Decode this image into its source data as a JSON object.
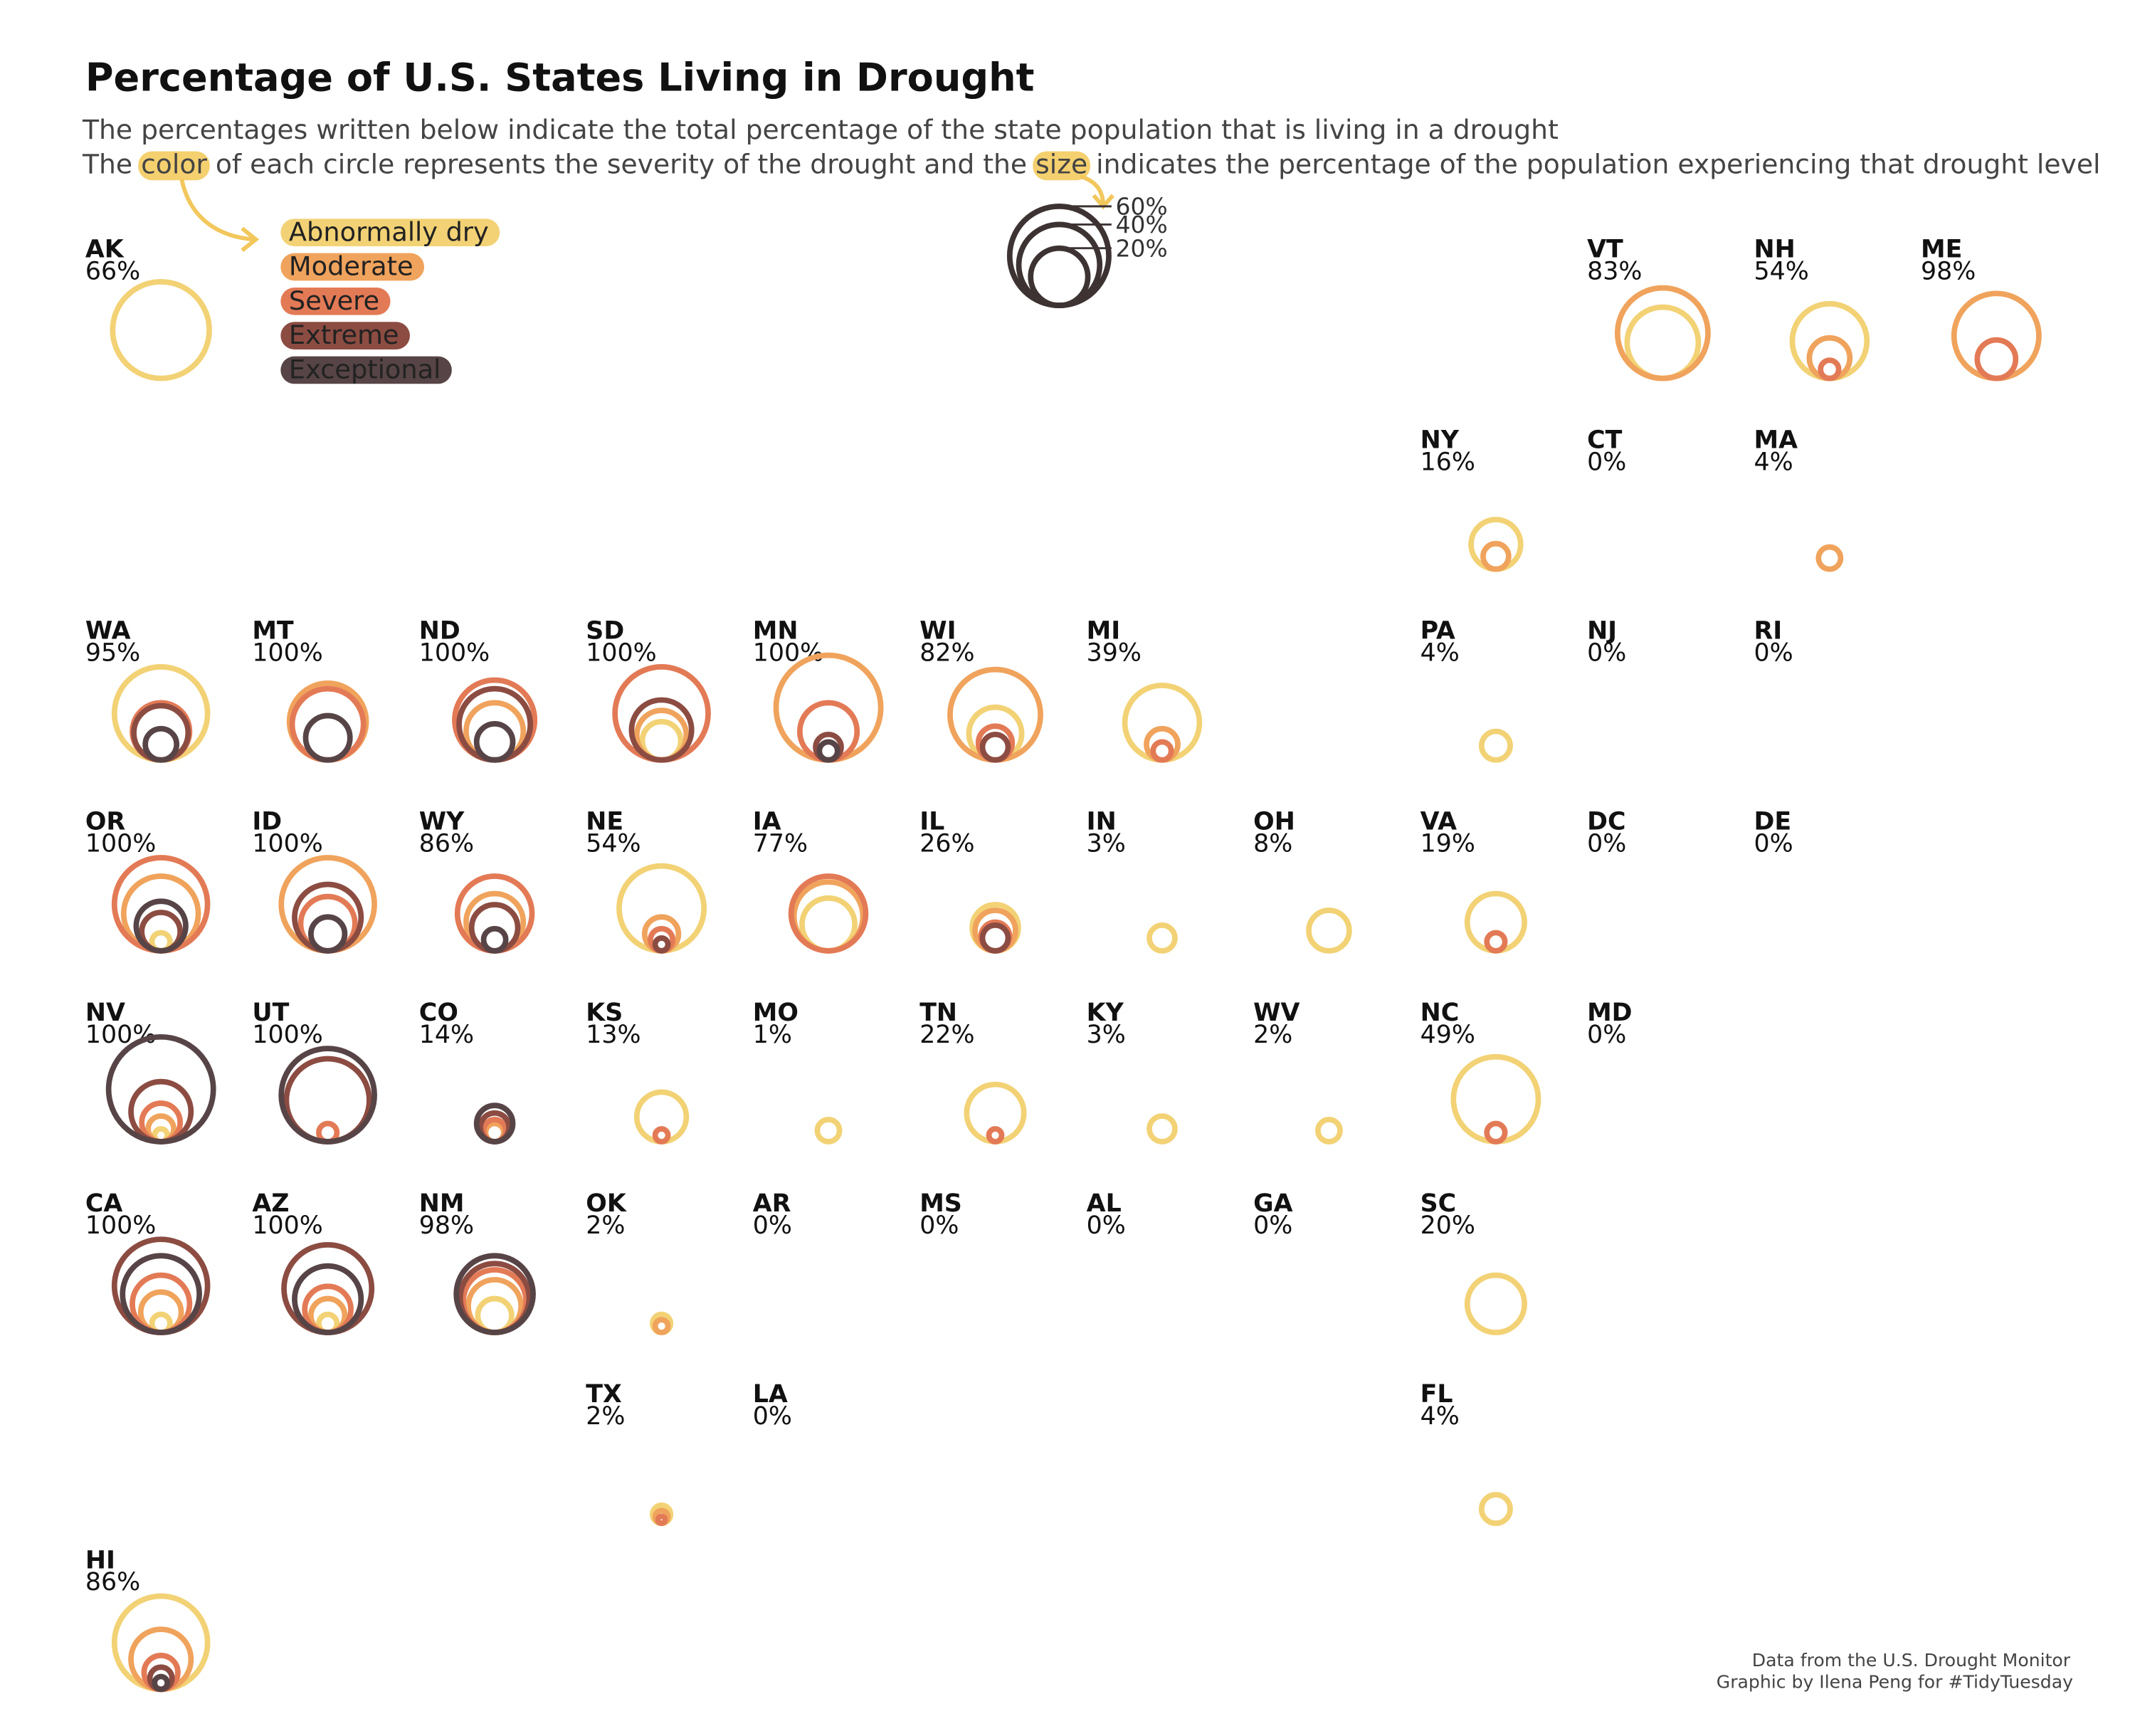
{
  "chart_data": {
    "type": "tilemap",
    "title": "Percentage of U.S. States Living in Drought",
    "subtitle": "The percentages written below indicate the total percentage of the state population that is living in a drought",
    "subtitle_2": [
      "The ",
      "color",
      " of each circle represents the severity of the drought and the ",
      "size",
      " indicates the percentage of the population experiencing that drought level"
    ],
    "highlight": "#f5d06f",
    "levels": [
      {
        "name": "Abnormally dry",
        "color": "#f2d275"
      },
      {
        "name": "Moderate",
        "color": "#f0a35c"
      },
      {
        "name": "Severe",
        "color": "#e37a56"
      },
      {
        "name": "Extreme",
        "color": "#8c4c42"
      },
      {
        "name": "Exceptional",
        "color": "#574446"
      }
    ],
    "size_legend": [
      {
        "value": 60,
        "label": "60%"
      },
      {
        "value": 40,
        "label": "40%"
      },
      {
        "value": 20,
        "label": "20%"
      }
    ],
    "states": [
      {
        "abbr": "AK",
        "total": 66,
        "total_label": "66%",
        "values": [
          57,
          0,
          0,
          0,
          0
        ]
      },
      {
        "abbr": "VT",
        "total": 83,
        "total_label": "83%",
        "values": [
          31,
          50,
          0,
          0,
          0
        ]
      },
      {
        "abbr": "NH",
        "total": 54,
        "total_label": "54%",
        "values": [
          34,
          10,
          2,
          0,
          0
        ]
      },
      {
        "abbr": "ME",
        "total": 98,
        "total_label": "98%",
        "values": [
          0,
          44,
          9,
          0,
          0
        ]
      },
      {
        "abbr": "NY",
        "total": 16,
        "total_label": "16%",
        "values": [
          15,
          4,
          0,
          0,
          0
        ]
      },
      {
        "abbr": "CT",
        "total": 0,
        "total_label": "0%",
        "values": [
          0,
          0,
          0,
          0,
          0
        ]
      },
      {
        "abbr": "MA",
        "total": 4,
        "total_label": "4%",
        "values": [
          0,
          3,
          0,
          0,
          0
        ]
      },
      {
        "abbr": "WA",
        "total": 95,
        "total_label": "95%",
        "values": [
          53,
          0,
          20,
          18,
          6
        ]
      },
      {
        "abbr": "MT",
        "total": 100,
        "total_label": "100%",
        "values": [
          0,
          36,
          31,
          0,
          12
        ]
      },
      {
        "abbr": "ND",
        "total": 100,
        "total_label": "100%",
        "values": [
          0,
          20,
          39,
          31,
          8
        ]
      },
      {
        "abbr": "SD",
        "total": 100,
        "total_label": "100%",
        "values": [
          9,
          15,
          53,
          22,
          0
        ]
      },
      {
        "abbr": "MN",
        "total": 100,
        "total_label": "100%",
        "values": [
          0,
          67,
          20,
          4,
          2
        ]
      },
      {
        "abbr": "WI",
        "total": 82,
        "total_label": "82%",
        "values": [
          17,
          50,
          7,
          4,
          0
        ]
      },
      {
        "abbr": "MI",
        "total": 39,
        "total_label": "39%",
        "values": [
          34,
          6,
          2,
          0,
          0
        ]
      },
      {
        "abbr": "PA",
        "total": 4,
        "total_label": "4%",
        "values": [
          5,
          0,
          0,
          0,
          0
        ]
      },
      {
        "abbr": "NJ",
        "total": 0,
        "total_label": "0%",
        "values": [
          0,
          0,
          0,
          0,
          0
        ]
      },
      {
        "abbr": "RI",
        "total": 0,
        "total_label": "0%",
        "values": [
          0,
          0,
          0,
          0,
          0
        ]
      },
      {
        "abbr": "OR",
        "total": 100,
        "total_label": "100%",
        "values": [
          2,
          34,
          53,
          9,
          15
        ]
      },
      {
        "abbr": "ID",
        "total": 100,
        "total_label": "100%",
        "values": [
          0,
          53,
          18,
          27,
          7
        ]
      },
      {
        "abbr": "WY",
        "total": 86,
        "total_label": "86%",
        "values": [
          0,
          20,
          34,
          13,
          3
        ]
      },
      {
        "abbr": "NE",
        "total": 54,
        "total_label": "54%",
        "values": [
          44,
          7,
          3,
          1,
          0
        ]
      },
      {
        "abbr": "IA",
        "total": 77,
        "total_label": "77%",
        "values": [
          17,
          29,
          34,
          0,
          0
        ]
      },
      {
        "abbr": "IL",
        "total": 26,
        "total_label": "26%",
        "values": [
          13,
          10,
          5,
          4,
          0
        ]
      },
      {
        "abbr": "IN",
        "total": 3,
        "total_label": "3%",
        "values": [
          4,
          0,
          0,
          0,
          0
        ]
      },
      {
        "abbr": "OH",
        "total": 8,
        "total_label": "8%",
        "values": [
          10,
          0,
          0,
          0,
          0
        ]
      },
      {
        "abbr": "VA",
        "total": 19,
        "total_label": "19%",
        "values": [
          20,
          0,
          2,
          0,
          0
        ]
      },
      {
        "abbr": "DC",
        "total": 0,
        "total_label": "0%",
        "values": [
          0,
          0,
          0,
          0,
          0
        ]
      },
      {
        "abbr": "DE",
        "total": 0,
        "total_label": "0%",
        "values": [
          0,
          0,
          0,
          0,
          0
        ]
      },
      {
        "abbr": "NV",
        "total": 100,
        "total_label": "100%",
        "values": [
          1,
          4,
          9,
          22,
          67
        ]
      },
      {
        "abbr": "UT",
        "total": 100,
        "total_label": "100%",
        "values": [
          0,
          0,
          2,
          42,
          53
        ]
      },
      {
        "abbr": "CO",
        "total": 14,
        "total_label": "14%",
        "values": [
          0,
          2,
          3,
          5,
          8
        ]
      },
      {
        "abbr": "KS",
        "total": 13,
        "total_label": "13%",
        "values": [
          15,
          0,
          1,
          0,
          0
        ]
      },
      {
        "abbr": "MO",
        "total": 1,
        "total_label": "1%",
        "values": [
          3,
          0,
          0,
          0,
          0
        ]
      },
      {
        "abbr": "TN",
        "total": 22,
        "total_label": "22%",
        "values": [
          20,
          0,
          1,
          0,
          0
        ]
      },
      {
        "abbr": "KY",
        "total": 3,
        "total_label": "3%",
        "values": [
          4,
          0,
          0,
          0,
          0
        ]
      },
      {
        "abbr": "WV",
        "total": 2,
        "total_label": "2%",
        "values": [
          3,
          0,
          0,
          0,
          0
        ]
      },
      {
        "abbr": "NC",
        "total": 49,
        "total_label": "49%",
        "values": [
          44,
          0,
          2,
          0,
          0
        ]
      },
      {
        "abbr": "MD",
        "total": 0,
        "total_label": "0%",
        "values": [
          0,
          0,
          0,
          0,
          0
        ]
      },
      {
        "abbr": "CA",
        "total": 100,
        "total_label": "100%",
        "values": [
          2,
          10,
          20,
          53,
          36
        ]
      },
      {
        "abbr": "AZ",
        "total": 100,
        "total_label": "100%",
        "values": [
          2,
          7,
          13,
          47,
          27
        ]
      },
      {
        "abbr": "NM",
        "total": 98,
        "total_label": "98%",
        "values": [
          7,
          17,
          24,
          29,
          36
        ]
      },
      {
        "abbr": "OK",
        "total": 2,
        "total_label": "2%",
        "values": [
          2,
          1,
          0,
          0,
          0
        ]
      },
      {
        "abbr": "AR",
        "total": 0,
        "total_label": "0%",
        "values": [
          0,
          0,
          0,
          0,
          0
        ]
      },
      {
        "abbr": "MS",
        "total": 0,
        "total_label": "0%",
        "values": [
          0,
          0,
          0,
          0,
          0
        ]
      },
      {
        "abbr": "AL",
        "total": 0,
        "total_label": "0%",
        "values": [
          0,
          0,
          0,
          0,
          0
        ]
      },
      {
        "abbr": "GA",
        "total": 0,
        "total_label": "0%",
        "values": [
          0,
          0,
          0,
          0,
          0
        ]
      },
      {
        "abbr": "SC",
        "total": 20,
        "total_label": "20%",
        "values": [
          20,
          0,
          0,
          0,
          0
        ]
      },
      {
        "abbr": "TX",
        "total": 2,
        "total_label": "2%",
        "values": [
          2,
          1,
          0.3,
          0,
          0
        ]
      },
      {
        "abbr": "LA",
        "total": 0,
        "total_label": "0%",
        "values": [
          0,
          0,
          0,
          0,
          0
        ]
      },
      {
        "abbr": "FL",
        "total": 4,
        "total_label": "4%",
        "values": [
          5,
          0,
          0,
          0,
          0
        ]
      },
      {
        "abbr": "HI",
        "total": 86,
        "total_label": "86%",
        "values": [
          53,
          22,
          7,
          3,
          1
        ]
      }
    ],
    "caption": [
      "Data from the U.S. Drought Monitor",
      "Graphic by Ilena Peng for #TidyTuesday"
    ]
  }
}
